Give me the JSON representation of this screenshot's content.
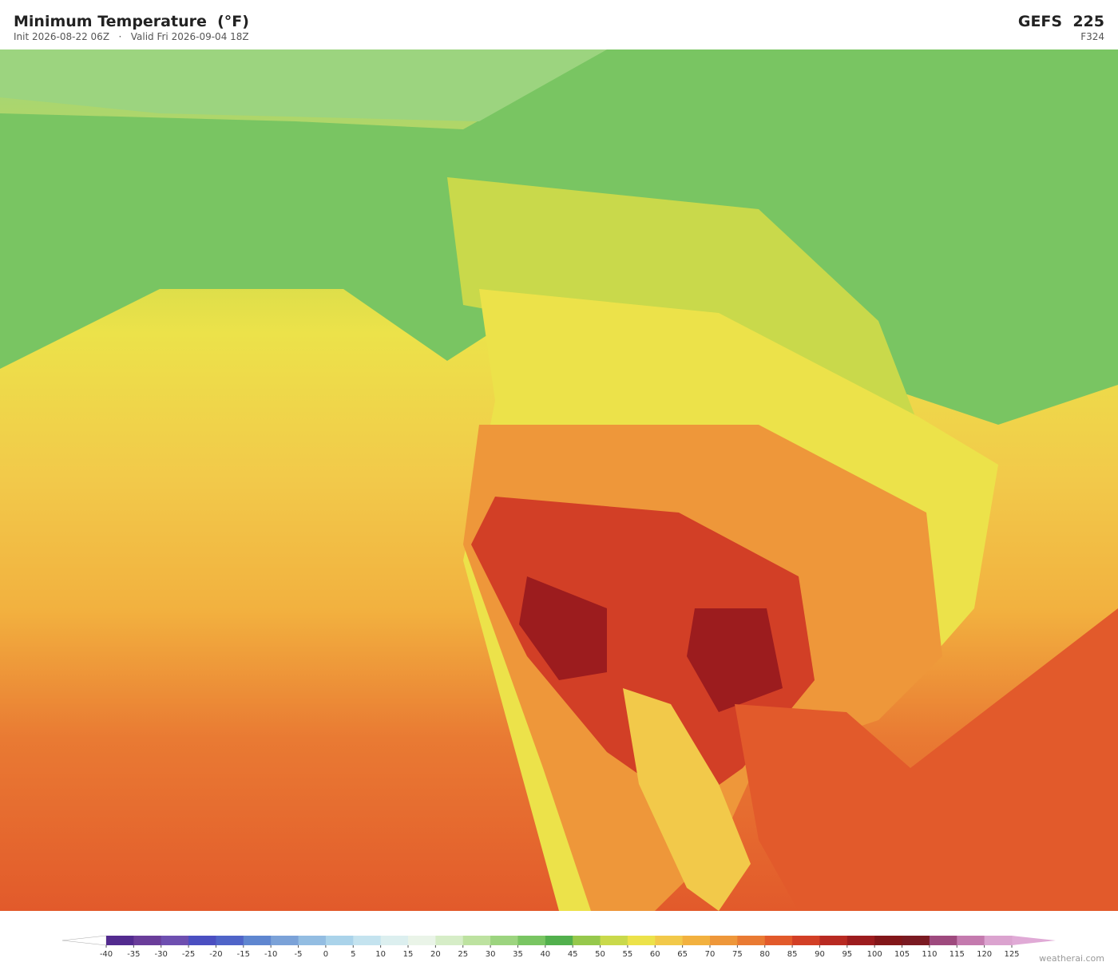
{
  "header": {
    "title": "Minimum Temperature  (°F)",
    "subtitle": "Init 2026-08-22 06Z   ·   Valid Fri 2026-09-04 18Z",
    "model": "GEFS  225",
    "forecast": "F324"
  },
  "colorbar": {
    "ticks": [
      -40,
      -35,
      -30,
      -25,
      -20,
      -15,
      -10,
      -5,
      0,
      5,
      10,
      15,
      20,
      25,
      30,
      35,
      40,
      45,
      50,
      55,
      60,
      65,
      70,
      75,
      80,
      85,
      90,
      95,
      100,
      105,
      110,
      115,
      120,
      125
    ],
    "colors": [
      "#532b8f",
      "#6a3d9a",
      "#6e4fb0",
      "#4b4fc1",
      "#4f64c8",
      "#5f86d0",
      "#7ba2d8",
      "#93bde2",
      "#aad3ea",
      "#c4e3ef",
      "#dcefef",
      "#eaf4e8",
      "#d6edc7",
      "#bde2a0",
      "#9cd47f",
      "#79c562",
      "#52b04d",
      "#96c84c",
      "#c9d94b",
      "#ece24a",
      "#f2c94a",
      "#f2b13f",
      "#ee973a",
      "#e97a33",
      "#e25a2b",
      "#d23f26",
      "#b82a22",
      "#9c1c1e",
      "#821619",
      "#7a1a22",
      "#9e4a7e",
      "#c47aae",
      "#dba3cf"
    ]
  },
  "credit": "weatherai.com"
}
